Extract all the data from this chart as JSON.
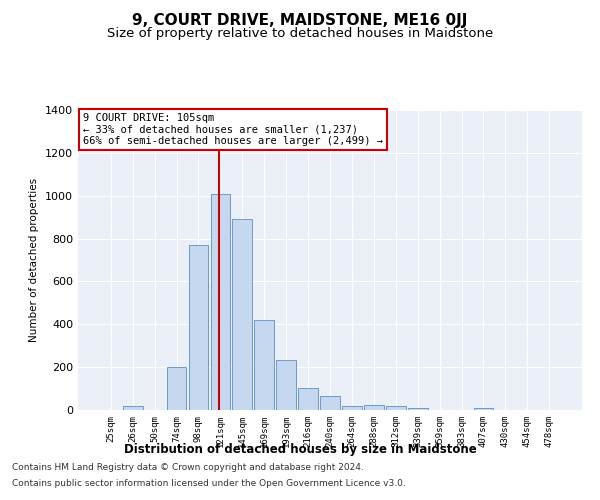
{
  "title": "9, COURT DRIVE, MAIDSTONE, ME16 0JJ",
  "subtitle": "Size of property relative to detached houses in Maidstone",
  "xlabel": "Distribution of detached houses by size in Maidstone",
  "ylabel": "Number of detached properties",
  "bin_labels": [
    "25sqm",
    "26sqm",
    "50sqm",
    "74sqm",
    "98sqm",
    "121sqm",
    "145sqm",
    "169sqm",
    "193sqm",
    "216sqm",
    "240sqm",
    "264sqm",
    "288sqm",
    "312sqm",
    "339sqm",
    "359sqm",
    "383sqm",
    "407sqm",
    "430sqm",
    "454sqm",
    "478sqm"
  ],
  "bar_values": [
    0,
    20,
    0,
    200,
    770,
    1010,
    890,
    420,
    235,
    105,
    65,
    20,
    25,
    20,
    10,
    0,
    0,
    10,
    0,
    0,
    0
  ],
  "bar_color": "#c5d8f0",
  "bar_edge_color": "#5a8fc4",
  "vline_color": "#cc0000",
  "annotation_line1": "9 COURT DRIVE: 105sqm",
  "annotation_line2": "← 33% of detached houses are smaller (1,237)",
  "annotation_line3": "66% of semi-detached houses are larger (2,499) →",
  "annotation_box_color": "white",
  "annotation_box_edge_color": "#cc0000",
  "ylim": [
    0,
    1400
  ],
  "yticks": [
    0,
    200,
    400,
    600,
    800,
    1000,
    1200,
    1400
  ],
  "background_color": "#eaeff8",
  "footer1": "Contains HM Land Registry data © Crown copyright and database right 2024.",
  "footer2": "Contains public sector information licensed under the Open Government Licence v3.0.",
  "title_fontsize": 11,
  "subtitle_fontsize": 9.5,
  "footer_fontsize": 6.5
}
